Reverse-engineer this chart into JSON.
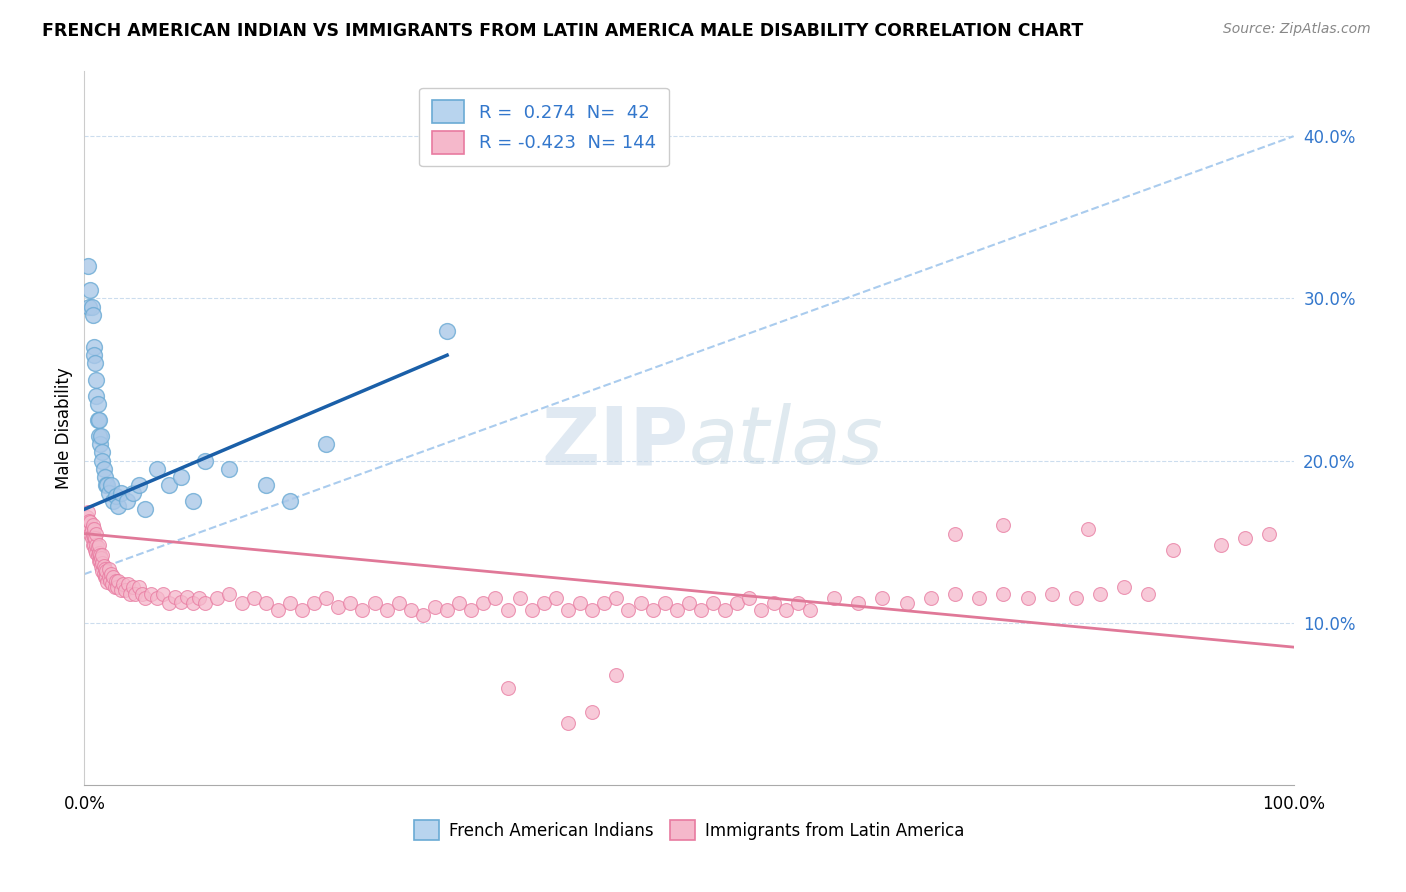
{
  "title": "FRENCH AMERICAN INDIAN VS IMMIGRANTS FROM LATIN AMERICA MALE DISABILITY CORRELATION CHART",
  "source": "Source: ZipAtlas.com",
  "ylabel": "Male Disability",
  "y_ticks": [
    0.1,
    0.2,
    0.3,
    0.4
  ],
  "y_tick_labels": [
    "10.0%",
    "20.0%",
    "30.0%",
    "40.0%"
  ],
  "xlim": [
    0.0,
    1.0
  ],
  "ylim": [
    0.0,
    0.44
  ],
  "blue_R": 0.274,
  "blue_N": 42,
  "pink_R": -0.423,
  "pink_N": 144,
  "blue_scatter_color": "#aac8e8",
  "blue_edge_color": "#6aaad4",
  "pink_scatter_color": "#f5b8cb",
  "pink_edge_color": "#e87aa0",
  "blue_line_color": "#1a5fa8",
  "pink_line_color": "#e07898",
  "diagonal_color": "#aaccee",
  "watermark_color": "#c8d8e8",
  "blue_legend_face": "#b8d4ee",
  "blue_legend_edge": "#6aaad4",
  "pink_legend_face": "#f5b8cb",
  "pink_legend_edge": "#e87aa0",
  "legend_text_color": "#3377cc",
  "blue_scatter_x": [
    0.003,
    0.004,
    0.005,
    0.006,
    0.007,
    0.008,
    0.008,
    0.009,
    0.01,
    0.01,
    0.011,
    0.011,
    0.012,
    0.012,
    0.013,
    0.014,
    0.015,
    0.015,
    0.016,
    0.017,
    0.018,
    0.019,
    0.02,
    0.022,
    0.024,
    0.026,
    0.028,
    0.03,
    0.035,
    0.04,
    0.045,
    0.05,
    0.06,
    0.07,
    0.08,
    0.09,
    0.1,
    0.12,
    0.15,
    0.17,
    0.2,
    0.3
  ],
  "blue_scatter_y": [
    0.32,
    0.295,
    0.305,
    0.295,
    0.29,
    0.27,
    0.265,
    0.26,
    0.25,
    0.24,
    0.235,
    0.225,
    0.225,
    0.215,
    0.21,
    0.215,
    0.205,
    0.2,
    0.195,
    0.19,
    0.185,
    0.185,
    0.18,
    0.185,
    0.175,
    0.178,
    0.172,
    0.18,
    0.175,
    0.18,
    0.185,
    0.17,
    0.195,
    0.185,
    0.19,
    0.175,
    0.2,
    0.195,
    0.185,
    0.175,
    0.21,
    0.28
  ],
  "pink_scatter_x": [
    0.002,
    0.003,
    0.003,
    0.004,
    0.004,
    0.005,
    0.005,
    0.006,
    0.006,
    0.007,
    0.007,
    0.007,
    0.008,
    0.008,
    0.008,
    0.009,
    0.009,
    0.01,
    0.01,
    0.01,
    0.011,
    0.011,
    0.012,
    0.012,
    0.012,
    0.013,
    0.013,
    0.014,
    0.014,
    0.015,
    0.015,
    0.015,
    0.016,
    0.016,
    0.017,
    0.017,
    0.018,
    0.018,
    0.019,
    0.02,
    0.02,
    0.021,
    0.022,
    0.023,
    0.024,
    0.025,
    0.026,
    0.027,
    0.028,
    0.03,
    0.032,
    0.034,
    0.036,
    0.038,
    0.04,
    0.042,
    0.045,
    0.048,
    0.05,
    0.055,
    0.06,
    0.065,
    0.07,
    0.075,
    0.08,
    0.085,
    0.09,
    0.095,
    0.1,
    0.11,
    0.12,
    0.13,
    0.14,
    0.15,
    0.16,
    0.17,
    0.18,
    0.19,
    0.2,
    0.21,
    0.22,
    0.23,
    0.24,
    0.25,
    0.26,
    0.27,
    0.28,
    0.29,
    0.3,
    0.31,
    0.32,
    0.33,
    0.34,
    0.35,
    0.36,
    0.37,
    0.38,
    0.39,
    0.4,
    0.41,
    0.42,
    0.43,
    0.44,
    0.45,
    0.46,
    0.47,
    0.48,
    0.49,
    0.5,
    0.51,
    0.52,
    0.53,
    0.54,
    0.55,
    0.56,
    0.57,
    0.58,
    0.59,
    0.6,
    0.62,
    0.64,
    0.66,
    0.68,
    0.7,
    0.72,
    0.74,
    0.76,
    0.78,
    0.8,
    0.82,
    0.84,
    0.86,
    0.88,
    0.72,
    0.76,
    0.83,
    0.9,
    0.94,
    0.96,
    0.98,
    0.35,
    0.4,
    0.42,
    0.44
  ],
  "pink_scatter_y": [
    0.165,
    0.16,
    0.168,
    0.158,
    0.163,
    0.155,
    0.162,
    0.152,
    0.158,
    0.148,
    0.154,
    0.16,
    0.148,
    0.153,
    0.158,
    0.145,
    0.152,
    0.143,
    0.148,
    0.155,
    0.142,
    0.147,
    0.138,
    0.143,
    0.148,
    0.138,
    0.142,
    0.135,
    0.14,
    0.132,
    0.137,
    0.142,
    0.13,
    0.135,
    0.128,
    0.133,
    0.128,
    0.132,
    0.125,
    0.128,
    0.133,
    0.126,
    0.13,
    0.124,
    0.128,
    0.122,
    0.126,
    0.122,
    0.126,
    0.12,
    0.124,
    0.12,
    0.124,
    0.118,
    0.122,
    0.118,
    0.122,
    0.118,
    0.115,
    0.118,
    0.115,
    0.118,
    0.112,
    0.116,
    0.113,
    0.116,
    0.112,
    0.115,
    0.112,
    0.115,
    0.118,
    0.112,
    0.115,
    0.112,
    0.108,
    0.112,
    0.108,
    0.112,
    0.115,
    0.11,
    0.112,
    0.108,
    0.112,
    0.108,
    0.112,
    0.108,
    0.105,
    0.11,
    0.108,
    0.112,
    0.108,
    0.112,
    0.115,
    0.108,
    0.115,
    0.108,
    0.112,
    0.115,
    0.108,
    0.112,
    0.108,
    0.112,
    0.115,
    0.108,
    0.112,
    0.108,
    0.112,
    0.108,
    0.112,
    0.108,
    0.112,
    0.108,
    0.112,
    0.115,
    0.108,
    0.112,
    0.108,
    0.112,
    0.108,
    0.115,
    0.112,
    0.115,
    0.112,
    0.115,
    0.118,
    0.115,
    0.118,
    0.115,
    0.118,
    0.115,
    0.118,
    0.122,
    0.118,
    0.155,
    0.16,
    0.158,
    0.145,
    0.148,
    0.152,
    0.155,
    0.06,
    0.038,
    0.045,
    0.068
  ]
}
